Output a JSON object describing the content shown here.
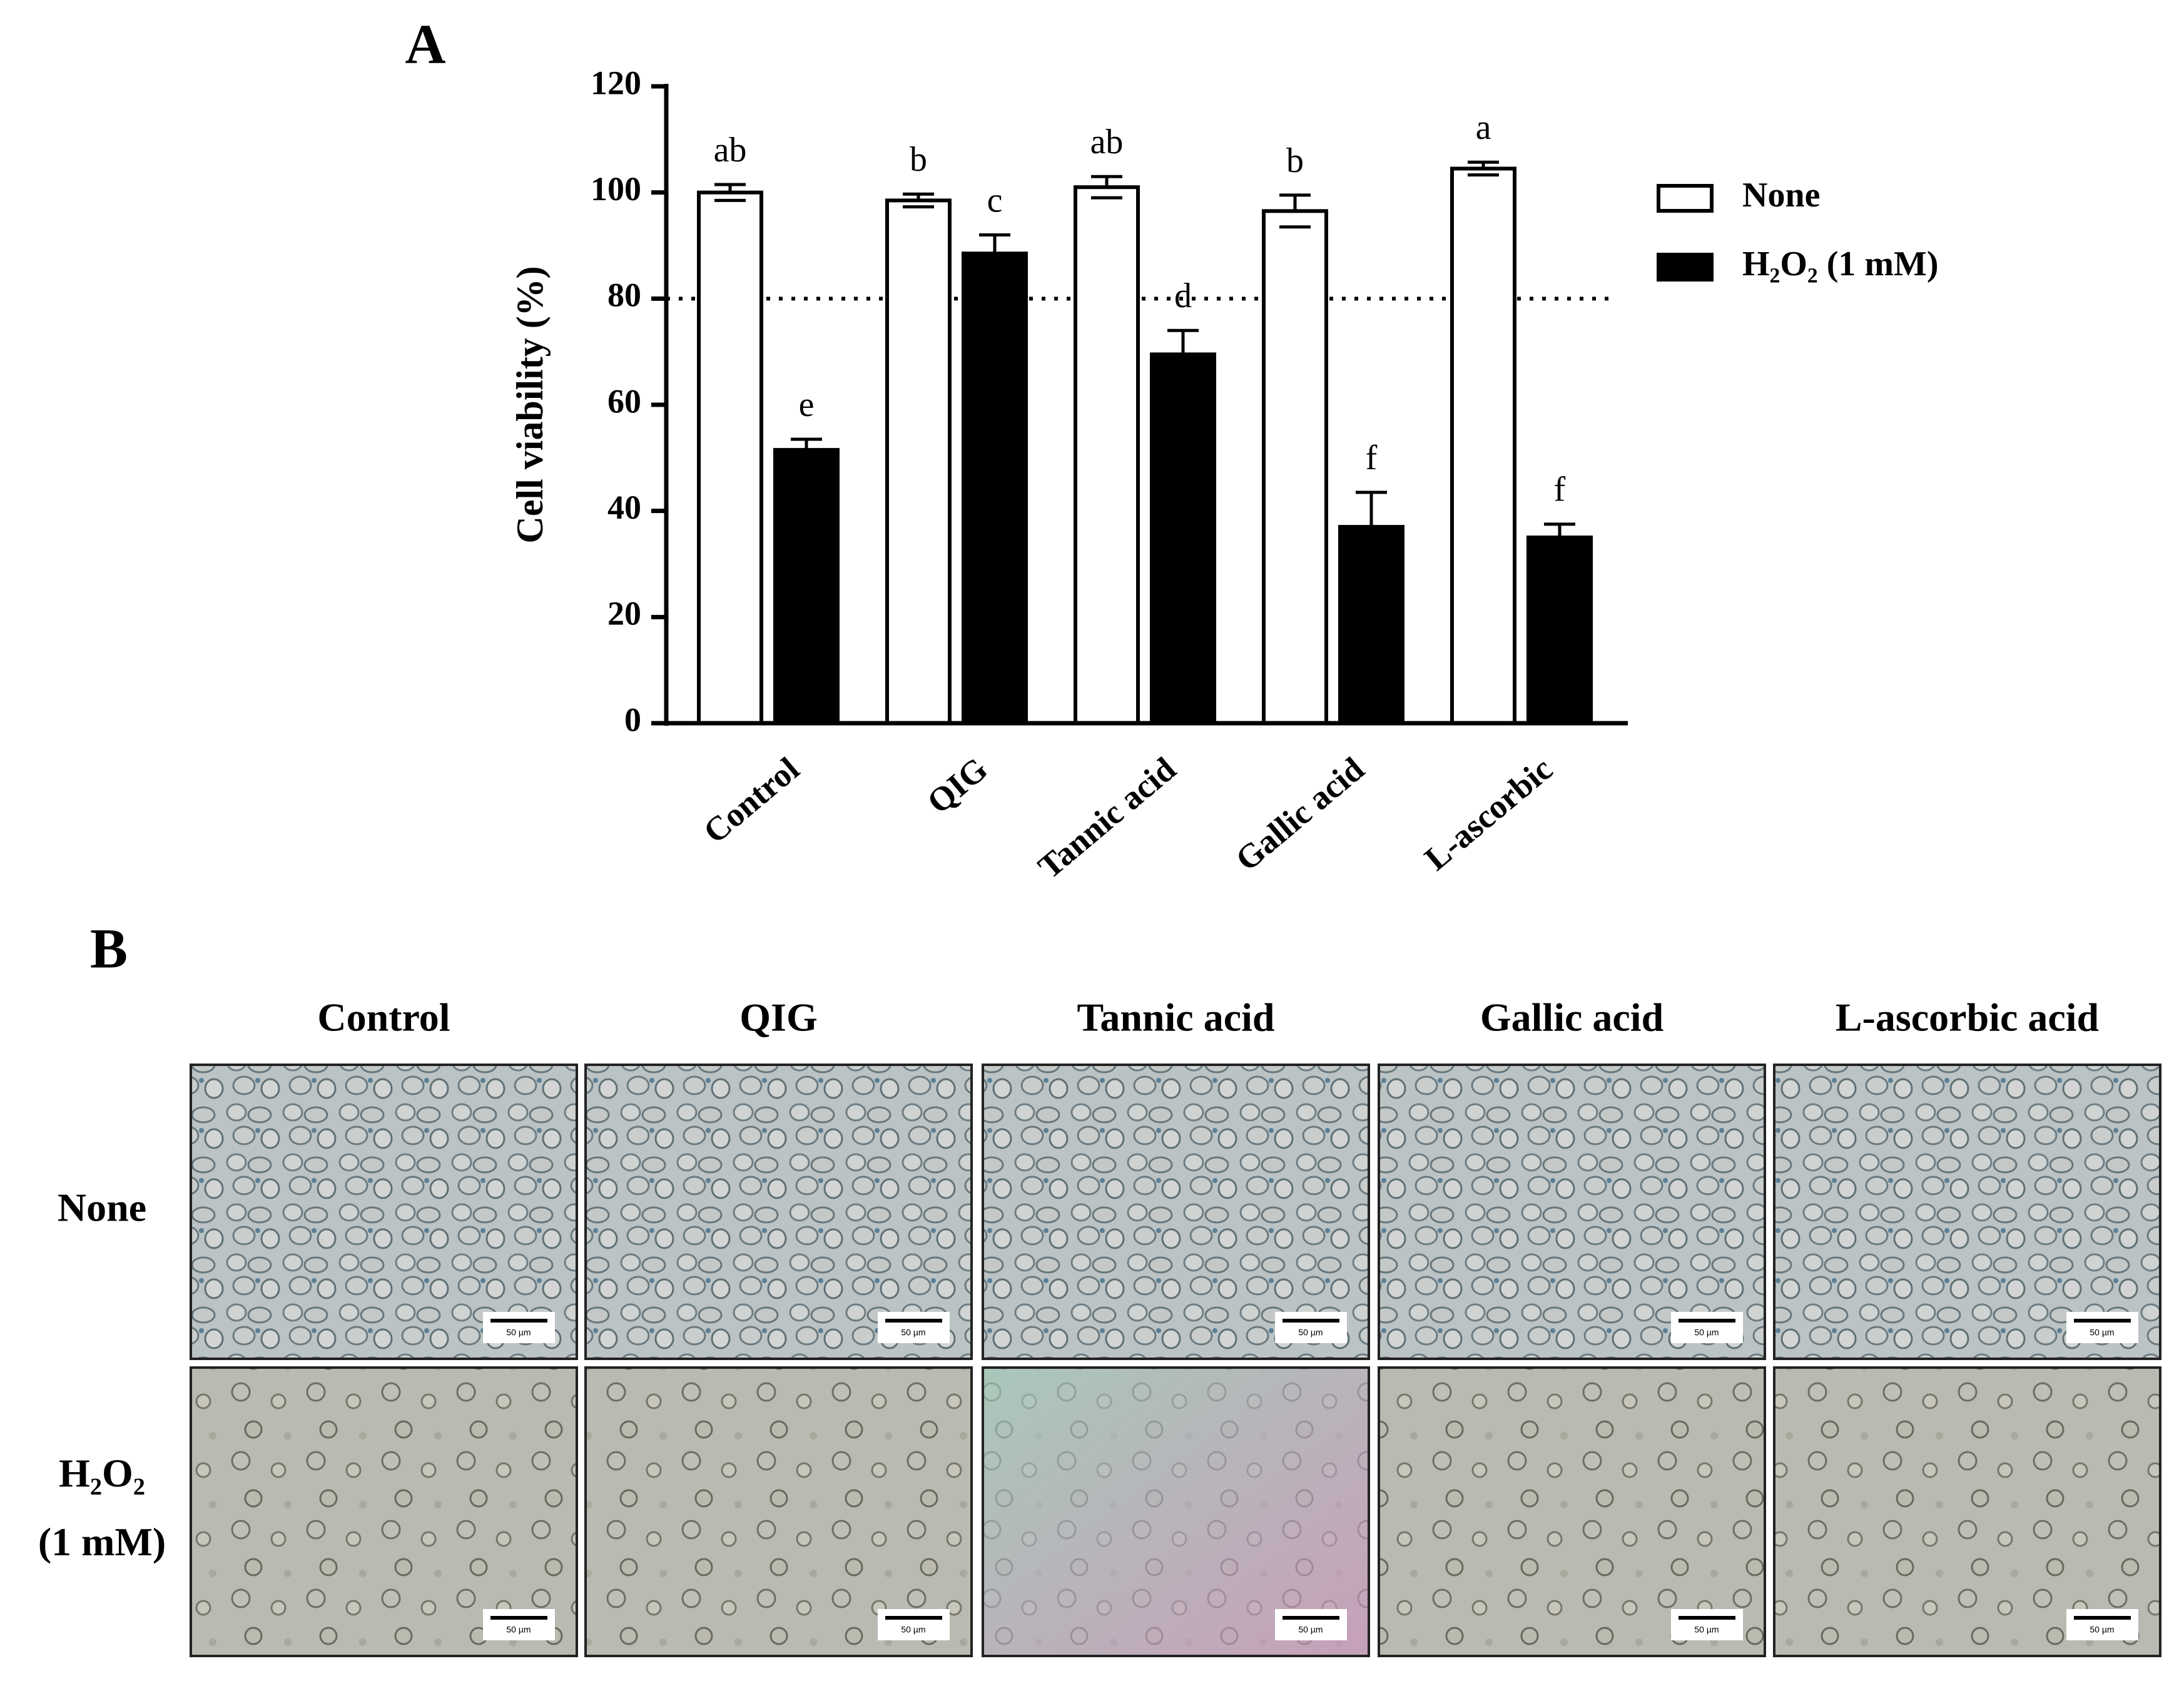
{
  "chart_data": {
    "type": "bar",
    "panel_label": "A",
    "y_label": "Cell viability (%)",
    "categories": [
      "Control",
      "QIG",
      "Tannic acid",
      "Gallic acid",
      "L-ascorbic"
    ],
    "series": [
      {
        "name": "None",
        "color": "#ffffff",
        "values": [
          100,
          98.5,
          101,
          96.5,
          104.5
        ],
        "errors": [
          1.5,
          1.2,
          2,
          3,
          1.2
        ],
        "letters": [
          "ab",
          "b",
          "ab",
          "b",
          "a"
        ]
      },
      {
        "name": "H₂O₂ (1 mM)",
        "color": "#000000",
        "values": [
          51.5,
          88.5,
          69.5,
          37,
          35
        ],
        "errors": [
          2,
          3.5,
          4.5,
          6.5,
          2.5
        ],
        "letters": [
          "e",
          "c",
          "d",
          "f",
          "f"
        ]
      }
    ],
    "ylim": [
      0,
      120
    ],
    "yticks": [
      0,
      20,
      40,
      60,
      80,
      100,
      120
    ],
    "reference_line": 80,
    "grid": false,
    "legend": "right"
  },
  "panel_b": {
    "label": "B",
    "columns": [
      "Control",
      "QIG",
      "Tannic acid",
      "Gallic acid",
      "L-ascorbic acid"
    ],
    "rows": [
      [
        "None"
      ],
      [
        "H₂O₂",
        "(1 mM)"
      ]
    ],
    "scale_bar": "50 µm"
  }
}
